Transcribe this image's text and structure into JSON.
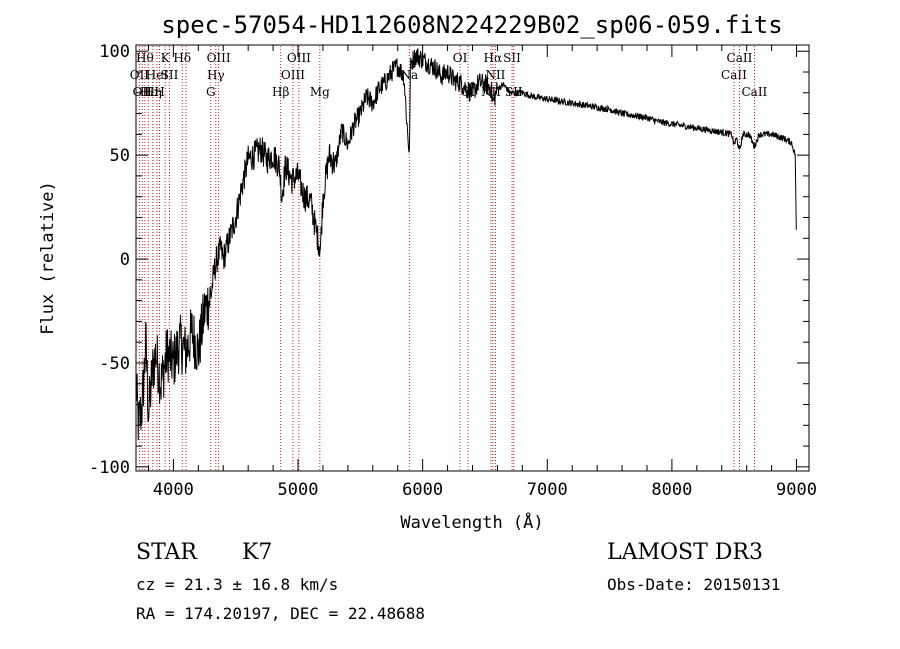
{
  "chart_data": {
    "type": "line",
    "title": "spec-57054-HD112608N224229B02_sp06-059.fits",
    "xlabel": "Wavelength (Å)",
    "ylabel": "Flux (relative)",
    "xlim": [
      3700,
      9100
    ],
    "ylim": [
      -102,
      103
    ],
    "xticks": [
      4000,
      5000,
      6000,
      7000,
      8000,
      9000
    ],
    "yticks": [
      -100,
      -50,
      0,
      50,
      100
    ],
    "series": [
      {
        "name": "flux",
        "x": [
          3700,
          3720,
          3750,
          3780,
          3800,
          3830,
          3860,
          3900,
          3950,
          4000,
          4050,
          4100,
          4150,
          4200,
          4250,
          4300,
          4330,
          4350,
          4380,
          4400,
          4450,
          4500,
          4550,
          4600,
          4650,
          4700,
          4750,
          4800,
          4850,
          4870,
          4900,
          4950,
          5000,
          5050,
          5100,
          5150,
          5180,
          5200,
          5250,
          5300,
          5350,
          5400,
          5450,
          5500,
          5550,
          5600,
          5650,
          5700,
          5750,
          5800,
          5850,
          5880,
          5895,
          5900,
          5910,
          5950,
          6000,
          6050,
          6100,
          6150,
          6200,
          6250,
          6300,
          6350,
          6400,
          6450,
          6500,
          6550,
          6563,
          6600,
          6650,
          6700,
          6750,
          6800,
          6900,
          7000,
          7100,
          7200,
          7300,
          7400,
          7500,
          7600,
          7700,
          7800,
          7900,
          8000,
          8100,
          8200,
          8300,
          8400,
          8480,
          8498,
          8520,
          8542,
          8570,
          8620,
          8662,
          8700,
          8800,
          8900,
          8960,
          8990,
          9000
        ],
        "y": [
          -60,
          -80,
          -70,
          -40,
          -75,
          -55,
          -45,
          -60,
          -45,
          -50,
          -40,
          -45,
          -35,
          -45,
          -25,
          -18,
          -5,
          0,
          5,
          0,
          10,
          20,
          35,
          48,
          50,
          53,
          48,
          50,
          45,
          30,
          45,
          38,
          40,
          30,
          28,
          12,
          5,
          30,
          50,
          45,
          62,
          55,
          65,
          70,
          78,
          75,
          82,
          85,
          90,
          93,
          88,
          60,
          50,
          90,
          95,
          98,
          96,
          94,
          92,
          88,
          90,
          86,
          85,
          82,
          80,
          85,
          84,
          82,
          75,
          82,
          84,
          80,
          80,
          80,
          78,
          77,
          76,
          75,
          74,
          73,
          72,
          70,
          69,
          68,
          66,
          65,
          64,
          63,
          62,
          61,
          60,
          55,
          58,
          52,
          60,
          60,
          54,
          60,
          60,
          58,
          56,
          50,
          5
        ]
      }
    ],
    "lines": [
      {
        "wl": 3727,
        "label": "OII",
        "row": 2
      },
      {
        "wl": 3750,
        "label": "OII",
        "row": 3
      },
      {
        "wl": 3771,
        "label": "Hθ",
        "row": 1
      },
      {
        "wl": 3798,
        "label": "Hε",
        "row": 3
      },
      {
        "wl": 3835,
        "label": "Hη",
        "row": 3
      },
      {
        "wl": 3868,
        "label": "HeI",
        "row": 2
      },
      {
        "wl": 3889,
        "label": "H",
        "row": 3
      },
      {
        "wl": 3934,
        "label": "K",
        "row": 1
      },
      {
        "wl": 3969,
        "label": "SII",
        "row": 2
      },
      {
        "wl": 4071,
        "label": "Hδ",
        "row": 1
      },
      {
        "wl": 4102,
        "label": "",
        "row": 0
      },
      {
        "wl": 4300,
        "label": "G",
        "row": 3
      },
      {
        "wl": 4340,
        "label": "Hγ",
        "row": 2
      },
      {
        "wl": 4363,
        "label": "OIII",
        "row": 1
      },
      {
        "wl": 4861,
        "label": "Hβ",
        "row": 3
      },
      {
        "wl": 4959,
        "label": "OIII",
        "row": 2
      },
      {
        "wl": 5007,
        "label": "OIII",
        "row": 1
      },
      {
        "wl": 5175,
        "label": "Mg",
        "row": 3
      },
      {
        "wl": 5893,
        "label": "Na",
        "row": 2
      },
      {
        "wl": 6300,
        "label": "OI",
        "row": 1
      },
      {
        "wl": 6364,
        "label": "OI",
        "row": 3
      },
      {
        "wl": 6548,
        "label": "NII",
        "row": 3
      },
      {
        "wl": 6563,
        "label": "Hα",
        "row": 1
      },
      {
        "wl": 6584,
        "label": "NII",
        "row": 2
      },
      {
        "wl": 6717,
        "label": "SII",
        "row": 1
      },
      {
        "wl": 6731,
        "label": "SII",
        "row": 3
      },
      {
        "wl": 8498,
        "label": "CaII",
        "row": 2
      },
      {
        "wl": 8542,
        "label": "CaII",
        "row": 1
      },
      {
        "wl": 8662,
        "label": "CaII",
        "row": 3
      }
    ]
  },
  "info": {
    "class": "STAR",
    "subclass": "K7",
    "cz": "cz = 21.3 ± 16.8 km/s",
    "radec": "RA = 174.20197, DEC =  22.48688",
    "survey": "LAMOST DR3",
    "obsdate": "Obs-Date: 20150131"
  }
}
